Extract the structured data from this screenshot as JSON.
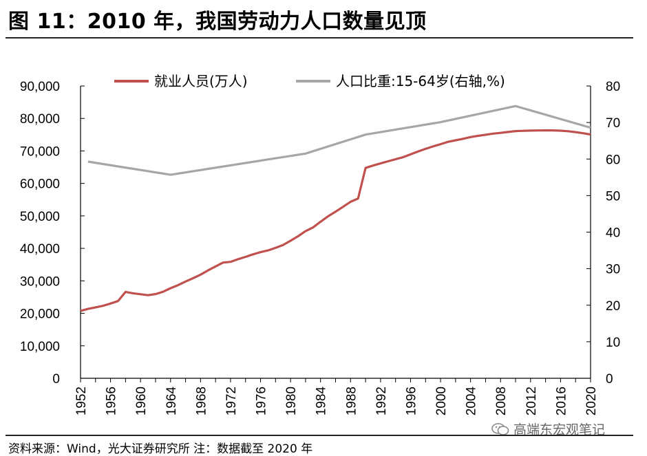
{
  "figure": {
    "title": "图 11：2010 年，我国劳动力人口数量见顶",
    "source": "资料来源：Wind，光大证券研究所 注：数据截至 2020 年",
    "watermark": "高端东宏观笔记"
  },
  "colors": {
    "employment": "#C0504D",
    "ratio": "#A6A6A6",
    "axis": "#000000",
    "text": "#000000"
  },
  "chart_data": {
    "type": "line",
    "title": "",
    "legend_position": "top",
    "grid": false,
    "x_ticks": [
      "1952",
      "1956",
      "1960",
      "1964",
      "1968",
      "1972",
      "1976",
      "1980",
      "1984",
      "1988",
      "1992",
      "1996",
      "2000",
      "2004",
      "2008",
      "2012",
      "2016",
      "2020"
    ],
    "y_left": {
      "range": [
        0,
        90000
      ],
      "tick_labels": [
        "0",
        "10,000",
        "20,000",
        "30,000",
        "40,000",
        "50,000",
        "60,000",
        "70,000",
        "80,000",
        "90,000"
      ]
    },
    "y_right": {
      "range": [
        0,
        80
      ],
      "tick_labels": [
        "0",
        "10",
        "20",
        "30",
        "40",
        "50",
        "60",
        "70",
        "80"
      ]
    },
    "series": [
      {
        "name": "就业人员(万人)",
        "axis": "left",
        "points": [
          [
            1952,
            20729
          ],
          [
            1953,
            21364
          ],
          [
            1954,
            21832
          ],
          [
            1955,
            22328
          ],
          [
            1956,
            23018
          ],
          [
            1957,
            23771
          ],
          [
            1958,
            26600
          ],
          [
            1959,
            26173
          ],
          [
            1960,
            25880
          ],
          [
            1961,
            25590
          ],
          [
            1962,
            25910
          ],
          [
            1963,
            26640
          ],
          [
            1964,
            27736
          ],
          [
            1965,
            28670
          ],
          [
            1966,
            29805
          ],
          [
            1967,
            30814
          ],
          [
            1968,
            31915
          ],
          [
            1969,
            33225
          ],
          [
            1970,
            34432
          ],
          [
            1971,
            35620
          ],
          [
            1972,
            35854
          ],
          [
            1973,
            36652
          ],
          [
            1974,
            37369
          ],
          [
            1975,
            38168
          ],
          [
            1976,
            38834
          ],
          [
            1977,
            39377
          ],
          [
            1978,
            40152
          ],
          [
            1979,
            41024
          ],
          [
            1980,
            42361
          ],
          [
            1981,
            43725
          ],
          [
            1982,
            45295
          ],
          [
            1983,
            46436
          ],
          [
            1984,
            48197
          ],
          [
            1985,
            49873
          ],
          [
            1986,
            51282
          ],
          [
            1987,
            52783
          ],
          [
            1988,
            54334
          ],
          [
            1989,
            55329
          ],
          [
            1990,
            64749
          ],
          [
            1991,
            65491
          ],
          [
            1992,
            66152
          ],
          [
            1993,
            66808
          ],
          [
            1994,
            67455
          ],
          [
            1995,
            68065
          ],
          [
            1996,
            68950
          ],
          [
            1997,
            69820
          ],
          [
            1998,
            70637
          ],
          [
            1999,
            71394
          ],
          [
            2000,
            72085
          ],
          [
            2001,
            72797
          ],
          [
            2002,
            73280
          ],
          [
            2003,
            73736
          ],
          [
            2004,
            74264
          ],
          [
            2005,
            74647
          ],
          [
            2006,
            74978
          ],
          [
            2007,
            75321
          ],
          [
            2008,
            75564
          ],
          [
            2009,
            75828
          ],
          [
            2010,
            76105
          ],
          [
            2011,
            76196
          ],
          [
            2012,
            76254
          ],
          [
            2013,
            76301
          ],
          [
            2014,
            76349
          ],
          [
            2015,
            76320
          ],
          [
            2016,
            76245
          ],
          [
            2017,
            76058
          ],
          [
            2018,
            75782
          ],
          [
            2019,
            75447
          ],
          [
            2020,
            75064
          ]
        ]
      },
      {
        "name": "人口比重:15-64岁(右轴,%)",
        "axis": "right",
        "points": [
          [
            1953,
            59.3
          ],
          [
            1964,
            55.7
          ],
          [
            1982,
            61.5
          ],
          [
            1990,
            66.7
          ],
          [
            2000,
            70.1
          ],
          [
            2010,
            74.5
          ],
          [
            2020,
            68.6
          ]
        ]
      }
    ]
  }
}
